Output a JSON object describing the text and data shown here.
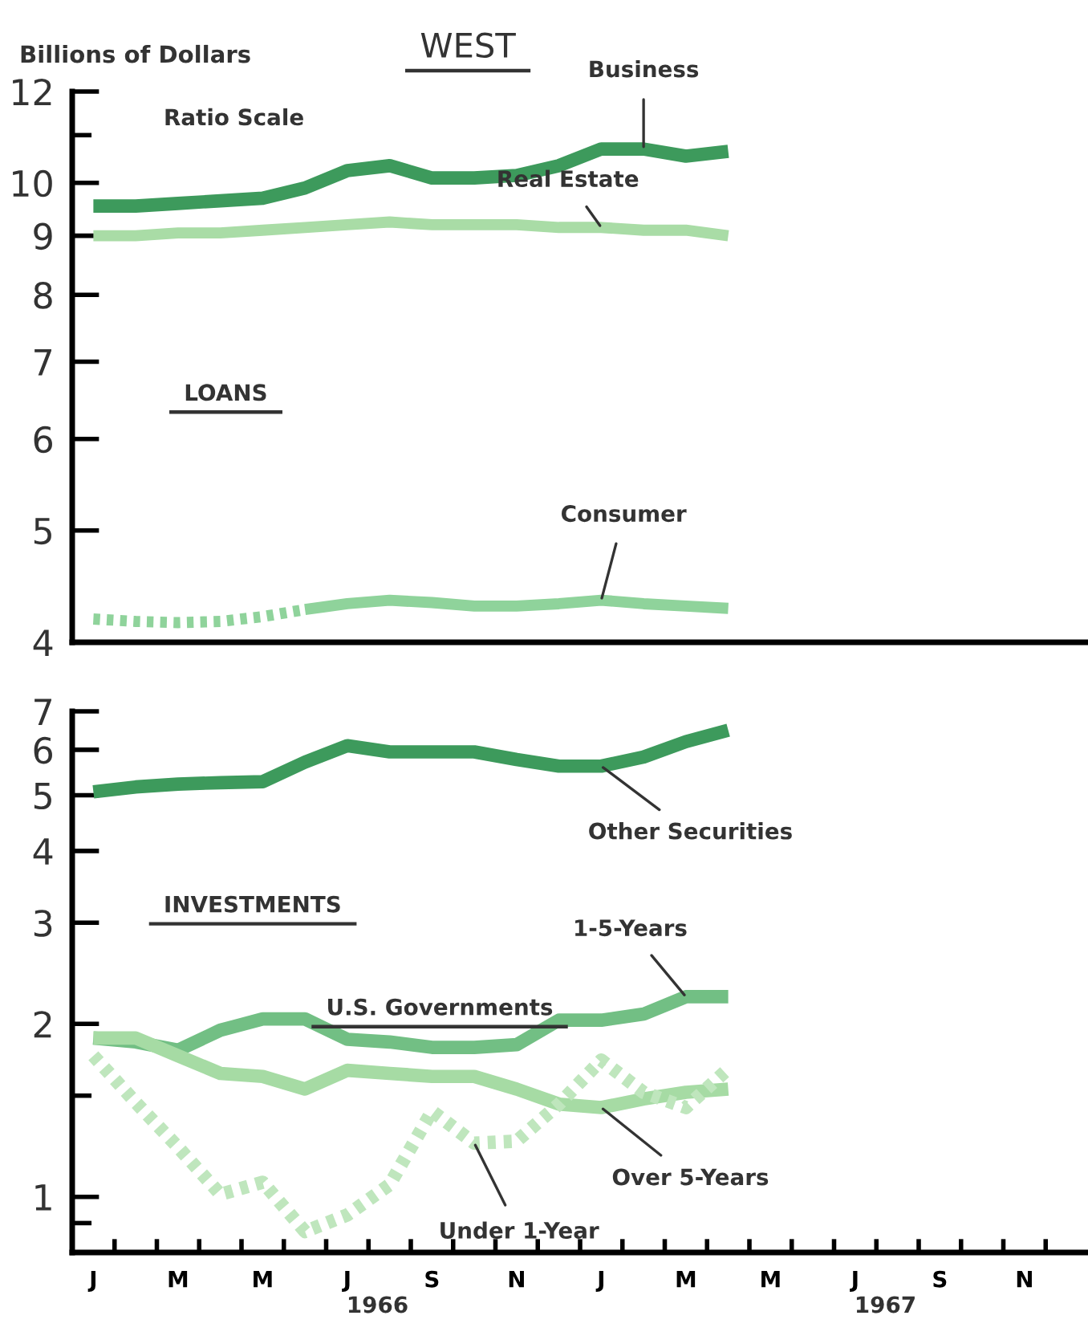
{
  "chart_data": [
    {
      "type": "line",
      "title": "WEST",
      "ylabel": "Billions of Dollars",
      "log": true,
      "ylim": [
        4,
        12
      ],
      "yticks": [
        4,
        5,
        6,
        7,
        8,
        9,
        10,
        {
          "value": 11,
          "label": null
        },
        12
      ],
      "tick_labels": "y",
      "grid": false,
      "categories": [
        null,
        null,
        null,
        null,
        null,
        null,
        null,
        null,
        null,
        null,
        null,
        null,
        null,
        null,
        null,
        null,
        null,
        null,
        null,
        null,
        null,
        null,
        null,
        null
      ],
      "annotations": [
        "Ratio Scale",
        "LOANS"
      ],
      "series": [
        {
          "name": "Business",
          "color": "#3d9a5c",
          "values": [
            9.55,
            9.55,
            9.6,
            9.65,
            9.7,
            9.9,
            10.25,
            10.35,
            10.1,
            10.1,
            10.15,
            10.35,
            10.7,
            10.7,
            10.55,
            10.65,
            null,
            null,
            null,
            null,
            null,
            null,
            null,
            null
          ]
        },
        {
          "name": "Real Estate",
          "color": "#a9dca6",
          "values": [
            9.0,
            9.0,
            9.05,
            9.05,
            9.1,
            9.15,
            9.2,
            9.25,
            9.2,
            9.2,
            9.2,
            9.15,
            9.15,
            9.1,
            9.1,
            9.0,
            null,
            null,
            null,
            null,
            null,
            null,
            null,
            null
          ]
        },
        {
          "color": "#8fd39b",
          "line_style": "dotted",
          "values": [
            4.19,
            4.17,
            4.16,
            4.17,
            4.21,
            4.27,
            null,
            null,
            null,
            null,
            null,
            null,
            null,
            null,
            null,
            null,
            null,
            null,
            null,
            null,
            null,
            null,
            null,
            null
          ]
        },
        {
          "name": "Consumer",
          "color": "#8fd39b",
          "values": [
            null,
            null,
            null,
            null,
            null,
            4.27,
            4.32,
            4.35,
            4.33,
            4.3,
            4.3,
            4.32,
            4.35,
            4.32,
            4.3,
            4.28,
            null,
            null,
            null,
            null,
            null,
            null,
            null,
            null
          ]
        }
      ]
    },
    {
      "type": "line",
      "log": true,
      "ylim": [
        0.8,
        7
      ],
      "yticks": [
        {
          "value": 0.9,
          "label": null
        },
        1,
        {
          "value": 1.5,
          "label": null
        },
        2,
        3,
        4,
        5,
        6,
        7
      ],
      "grid": false,
      "categories": [
        "J",
        null,
        "M",
        null,
        "M",
        null,
        "J",
        null,
        "S",
        null,
        "N",
        null,
        "J",
        null,
        "M",
        null,
        "M",
        null,
        "J",
        null,
        "S",
        null,
        "N",
        null
      ],
      "annotations": [
        "INVESTMENTS",
        "U.S. Governments",
        "1966",
        "1967"
      ],
      "series": [
        {
          "name": "Other Securities",
          "color": "#3d9a5c",
          "values": [
            5.07,
            5.17,
            5.23,
            5.26,
            5.28,
            5.71,
            6.1,
            5.95,
            5.95,
            5.95,
            5.77,
            5.62,
            5.62,
            5.83,
            6.2,
            6.49,
            null,
            null,
            null,
            null,
            null,
            null,
            null,
            null
          ]
        },
        {
          "name": "1-5-Years",
          "color": "#72bf84",
          "values": [
            1.89,
            1.86,
            1.8,
            1.95,
            2.04,
            2.04,
            1.88,
            1.86,
            1.82,
            1.82,
            1.84,
            2.03,
            2.03,
            2.08,
            2.23,
            2.23,
            null,
            null,
            null,
            null,
            null,
            null,
            null,
            null
          ]
        },
        {
          "name": "Over 5-Years",
          "color": "#a6dba4",
          "values": [
            1.89,
            1.89,
            1.76,
            1.64,
            1.62,
            1.54,
            1.66,
            1.64,
            1.62,
            1.62,
            1.54,
            1.45,
            1.43,
            1.48,
            1.52,
            1.54,
            null,
            null,
            null,
            null,
            null,
            null,
            null,
            null
          ]
        },
        {
          "name": "Under 1-Year",
          "color": "#bfe6bd",
          "line_style": "dotted",
          "values": [
            1.76,
            1.46,
            1.22,
            1.01,
            1.06,
            0.87,
            0.93,
            1.05,
            1.41,
            1.24,
            1.25,
            1.45,
            1.73,
            1.52,
            1.43,
            1.67,
            null,
            null,
            null,
            null,
            null,
            null,
            null,
            null
          ]
        }
      ]
    }
  ]
}
